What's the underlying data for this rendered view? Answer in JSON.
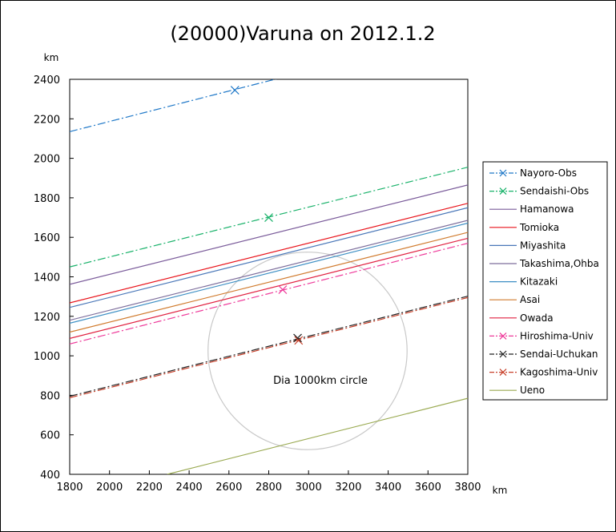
{
  "chart_data": {
    "type": "line",
    "title": "(20000)Varuna on 2012.1.2",
    "xlabel": "km",
    "ylabel": "km",
    "xlim": [
      1800,
      3800
    ],
    "ylim": [
      400,
      2400
    ],
    "xticks": [
      1800,
      2000,
      2200,
      2400,
      2600,
      2800,
      3000,
      3200,
      3400,
      3600,
      3800
    ],
    "yticks": [
      400,
      600,
      800,
      1000,
      1200,
      1400,
      1600,
      1800,
      2000,
      2200,
      2400
    ],
    "grid": false,
    "legend_position": "right",
    "series": [
      {
        "name": "Nayoro-Obs",
        "color": "#1f78c8",
        "dash": "dashdot",
        "line": [
          [
            1800,
            2135
          ],
          [
            2850,
            2405
          ]
        ],
        "marker": [
          2630,
          2345
        ]
      },
      {
        "name": "Sendaishi-Obs",
        "color": "#19b26a",
        "dash": "dashdot",
        "line": [
          [
            1800,
            1450
          ],
          [
            3800,
            1955
          ]
        ],
        "marker": [
          2800,
          1700
        ]
      },
      {
        "name": "Hamanowa",
        "color": "#7a5b9a",
        "dash": "solid",
        "line": [
          [
            1800,
            1362
          ],
          [
            3800,
            1865
          ]
        ]
      },
      {
        "name": "Tomioka",
        "color": "#e8141c",
        "dash": "solid",
        "line": [
          [
            1800,
            1268
          ],
          [
            3800,
            1772
          ]
        ]
      },
      {
        "name": "Miyashita",
        "color": "#4a77b8",
        "dash": "solid",
        "line": [
          [
            1800,
            1245
          ],
          [
            3800,
            1750
          ]
        ]
      },
      {
        "name": "Takashima,Ohba",
        "color": "#7d6e9c",
        "dash": "solid",
        "line": [
          [
            1800,
            1180
          ],
          [
            3800,
            1686
          ]
        ]
      },
      {
        "name": "Kitazaki",
        "color": "#3d8fc4",
        "dash": "solid",
        "line": [
          [
            1800,
            1165
          ],
          [
            3800,
            1672
          ]
        ]
      },
      {
        "name": "Asai",
        "color": "#d07b2e",
        "dash": "solid",
        "line": [
          [
            1800,
            1120
          ],
          [
            3800,
            1625
          ]
        ]
      },
      {
        "name": "Owada",
        "color": "#e02040",
        "dash": "solid",
        "line": [
          [
            1800,
            1088
          ],
          [
            3800,
            1595
          ]
        ]
      },
      {
        "name": "Hiroshima-Univ",
        "color": "#ee3a9a",
        "dash": "dashdot",
        "line": [
          [
            1800,
            1060
          ],
          [
            3800,
            1570
          ]
        ],
        "marker": [
          2870,
          1335
        ]
      },
      {
        "name": "Sendai-Uchukan",
        "color": "#222222",
        "dash": "dashdot",
        "line": [
          [
            1800,
            795
          ],
          [
            3800,
            1302
          ]
        ],
        "marker": [
          2945,
          1090
        ]
      },
      {
        "name": "Kagoshima-Univ",
        "color": "#c8402a",
        "dash": "dashdot",
        "line": [
          [
            1800,
            788
          ],
          [
            3800,
            1295
          ]
        ],
        "marker": [
          2950,
          1078
        ]
      },
      {
        "name": "Ueno",
        "color": "#9aaa52",
        "dash": "solid",
        "line": [
          [
            2290,
            400
          ],
          [
            3800,
            785
          ]
        ]
      }
    ],
    "circle": {
      "label": "Dia 1000km circle",
      "center": [
        2995,
        1025
      ],
      "diameter": 1000,
      "color": "#c8c8c8"
    }
  }
}
